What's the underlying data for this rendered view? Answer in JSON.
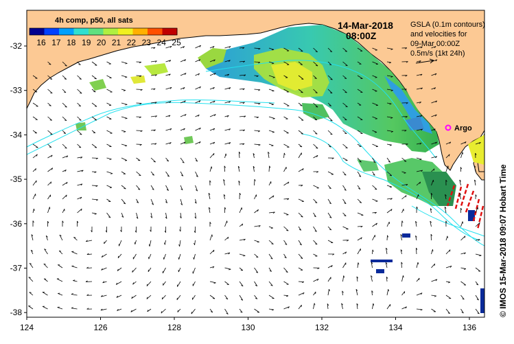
{
  "colorbar": {
    "title": "4h comp, p50, all sats",
    "labels": [
      "16",
      "17",
      "18",
      "19",
      "20",
      "21",
      "22",
      "23",
      "24",
      "25"
    ],
    "colors": [
      "#00008f",
      "#0040ff",
      "#00a0ff",
      "#30e0d0",
      "#60e080",
      "#b0f040",
      "#f0f020",
      "#ffb000",
      "#ff5000",
      "#c00000"
    ]
  },
  "map_header": {
    "date": "14-Mar-2018",
    "time": "08:00Z"
  },
  "legend": {
    "line1": "GSLA (0.1m contours)",
    "line2": "and velocities for",
    "line3": "09-Mar 00:00Z",
    "line4": "0.5m/s (1kt 24h)"
  },
  "marker": {
    "label": "Argo",
    "color": "#ff00ff"
  },
  "credit": {
    "text": "© IMOS 15-Mar-2018 09:07 Hobart Time"
  },
  "axes": {
    "x_ticks": [
      "124",
      "126",
      "128",
      "130",
      "132",
      "134",
      "136"
    ],
    "y_ticks": [
      "-32",
      "-33",
      "-34",
      "-35",
      "-36",
      "-37",
      "-38"
    ]
  },
  "colors": {
    "land": "#fcc994",
    "sea": "#ffffff",
    "contour": "#22e0ee",
    "front": "#e01010",
    "arrow": "#000000"
  }
}
